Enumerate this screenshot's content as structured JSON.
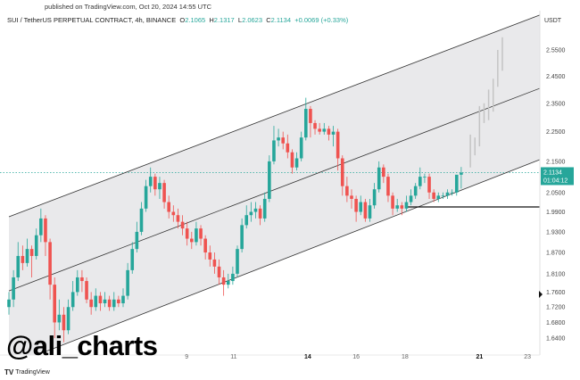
{
  "header": {
    "published": "published on TradingView.com, Oct 20, 2024 14:55 UTC",
    "symbol": "SUI / TetherUS PERPETUAL CONTRACT, 4h, BINANCE",
    "o_label": "O",
    "o": "2.1065",
    "h_label": "H",
    "h": "2.1317",
    "l_label": "L",
    "l": "2.0623",
    "c_label": "C",
    "c": "2.1134",
    "change": "+0.0069 (+0.33%)"
  },
  "watermark": "@ali_charts",
  "brand": {
    "icon": "tradingview-logo-icon",
    "label": "TradingView"
  },
  "colors": {
    "up": "#26a69a",
    "down": "#ef5350",
    "channel_fill": "#e9e9eb",
    "channel_line": "#333333",
    "projection": "#c4c4c4"
  },
  "chart_data": {
    "type": "candlestick",
    "scale": "log",
    "currency": "USDT",
    "y_ticks": [
      "2.5500",
      "2.4500",
      "2.3500",
      "2.2500",
      "2.1500",
      "2.0500",
      "1.9900",
      "1.9300",
      "1.8700",
      "1.8100",
      "1.7600",
      "1.7200",
      "1.6800",
      "1.6400"
    ],
    "x_ticks": [
      {
        "label": "9",
        "index": 38.9,
        "bold": false
      },
      {
        "label": "11",
        "index": 49.2,
        "bold": false
      },
      {
        "label": "14",
        "index": 65.4,
        "bold": true
      },
      {
        "label": "16",
        "index": 76,
        "bold": false
      },
      {
        "label": "18",
        "index": 86.7,
        "bold": false
      },
      {
        "label": "21",
        "index": 103,
        "bold": true
      },
      {
        "label": "23",
        "index": 113.5,
        "bold": false
      }
    ],
    "last_price": {
      "price": "2.1134",
      "countdown": "01:04:12",
      "value": 2.1134
    },
    "candles": [
      [
        1.72,
        1.76,
        1.7,
        1.74
      ],
      [
        1.74,
        1.82,
        1.72,
        1.8
      ],
      [
        1.8,
        1.9,
        1.79,
        1.86
      ],
      [
        1.86,
        1.89,
        1.82,
        1.84
      ],
      [
        1.84,
        1.91,
        1.83,
        1.88
      ],
      [
        1.88,
        1.89,
        1.8,
        1.86
      ],
      [
        1.86,
        1.94,
        1.85,
        1.92
      ],
      [
        1.92,
        2.0,
        1.9,
        1.97
      ],
      [
        1.97,
        1.98,
        1.86,
        1.9
      ],
      [
        1.9,
        1.91,
        1.74,
        1.78
      ],
      [
        1.78,
        1.8,
        1.64,
        1.68
      ],
      [
        1.68,
        1.74,
        1.66,
        1.7
      ],
      [
        1.7,
        1.72,
        1.63,
        1.66
      ],
      [
        1.66,
        1.74,
        1.65,
        1.72
      ],
      [
        1.72,
        1.79,
        1.71,
        1.76
      ],
      [
        1.76,
        1.82,
        1.75,
        1.8
      ],
      [
        1.8,
        1.82,
        1.76,
        1.79
      ],
      [
        1.79,
        1.8,
        1.73,
        1.74
      ],
      [
        1.74,
        1.76,
        1.7,
        1.72
      ],
      [
        1.72,
        1.77,
        1.71,
        1.75
      ],
      [
        1.75,
        1.76,
        1.71,
        1.73
      ],
      [
        1.73,
        1.76,
        1.72,
        1.74
      ],
      [
        1.74,
        1.75,
        1.71,
        1.72
      ],
      [
        1.72,
        1.76,
        1.71,
        1.74
      ],
      [
        1.74,
        1.75,
        1.72,
        1.73
      ],
      [
        1.73,
        1.77,
        1.72,
        1.75
      ],
      [
        1.75,
        1.84,
        1.74,
        1.82
      ],
      [
        1.82,
        1.9,
        1.81,
        1.88
      ],
      [
        1.88,
        1.96,
        1.87,
        1.93
      ],
      [
        1.93,
        2.02,
        1.92,
        2.0
      ],
      [
        2.0,
        2.09,
        1.99,
        2.07
      ],
      [
        2.07,
        2.13,
        2.05,
        2.1
      ],
      [
        2.1,
        2.11,
        2.04,
        2.06
      ],
      [
        2.06,
        2.1,
        2.03,
        2.08
      ],
      [
        2.08,
        2.09,
        2.0,
        2.02
      ],
      [
        2.02,
        2.04,
        1.97,
        1.99
      ],
      [
        1.99,
        2.01,
        1.96,
        1.98
      ],
      [
        1.98,
        2.0,
        1.94,
        1.96
      ],
      [
        1.96,
        1.98,
        1.92,
        1.94
      ],
      [
        1.94,
        1.96,
        1.89,
        1.91
      ],
      [
        1.91,
        1.93,
        1.88,
        1.9
      ],
      [
        1.9,
        1.96,
        1.89,
        1.94
      ],
      [
        1.94,
        1.95,
        1.89,
        1.91
      ],
      [
        1.91,
        1.92,
        1.85,
        1.87
      ],
      [
        1.87,
        1.89,
        1.83,
        1.85
      ],
      [
        1.85,
        1.87,
        1.81,
        1.83
      ],
      [
        1.83,
        1.85,
        1.78,
        1.8
      ],
      [
        1.8,
        1.82,
        1.75,
        1.78
      ],
      [
        1.78,
        1.81,
        1.77,
        1.79
      ],
      [
        1.79,
        1.83,
        1.78,
        1.81
      ],
      [
        1.81,
        1.89,
        1.8,
        1.88
      ],
      [
        1.88,
        1.97,
        1.87,
        1.95
      ],
      [
        1.95,
        2.01,
        1.94,
        1.98
      ],
      [
        1.98,
        2.02,
        1.96,
        1.99
      ],
      [
        1.99,
        2.02,
        1.97,
        2.0
      ],
      [
        2.0,
        2.01,
        1.95,
        1.97
      ],
      [
        1.97,
        2.05,
        1.96,
        2.03
      ],
      [
        2.03,
        2.17,
        2.02,
        2.15
      ],
      [
        2.15,
        2.27,
        2.14,
        2.22
      ],
      [
        2.22,
        2.26,
        2.2,
        2.23
      ],
      [
        2.23,
        2.25,
        2.19,
        2.21
      ],
      [
        2.21,
        2.24,
        2.16,
        2.18
      ],
      [
        2.18,
        2.19,
        2.11,
        2.13
      ],
      [
        2.13,
        2.18,
        2.12,
        2.16
      ],
      [
        2.16,
        2.25,
        2.15,
        2.23
      ],
      [
        2.23,
        2.37,
        2.22,
        2.33
      ],
      [
        2.33,
        2.34,
        2.23,
        2.28
      ],
      [
        2.28,
        2.29,
        2.24,
        2.26
      ],
      [
        2.26,
        2.28,
        2.24,
        2.25
      ],
      [
        2.25,
        2.28,
        2.24,
        2.26
      ],
      [
        2.26,
        2.27,
        2.22,
        2.24
      ],
      [
        2.24,
        2.27,
        2.2,
        2.25
      ],
      [
        2.25,
        2.26,
        2.12,
        2.16
      ],
      [
        2.16,
        2.17,
        2.04,
        2.07
      ],
      [
        2.07,
        2.1,
        2.02,
        2.04
      ],
      [
        2.04,
        2.06,
        2.0,
        2.03
      ],
      [
        2.03,
        2.04,
        1.96,
        1.99
      ],
      [
        1.99,
        2.04,
        1.98,
        2.02
      ],
      [
        2.02,
        2.03,
        1.96,
        1.97
      ],
      [
        1.97,
        2.03,
        1.96,
        2.01
      ],
      [
        2.01,
        2.08,
        2.0,
        2.06
      ],
      [
        2.06,
        2.15,
        2.05,
        2.13
      ],
      [
        2.13,
        2.14,
        2.08,
        2.1
      ],
      [
        2.1,
        2.11,
        2.02,
        2.04
      ],
      [
        2.04,
        2.05,
        1.98,
        2.0
      ],
      [
        2.0,
        2.03,
        1.99,
        2.01
      ],
      [
        2.01,
        2.02,
        1.98,
        2.0
      ],
      [
        2.0,
        2.04,
        1.99,
        2.02
      ],
      [
        2.02,
        2.06,
        2.01,
        2.04
      ],
      [
        2.04,
        2.08,
        2.03,
        2.07
      ],
      [
        2.07,
        2.13,
        2.06,
        2.1
      ],
      [
        2.1,
        2.11,
        2.08,
        2.1
      ],
      [
        2.1,
        2.11,
        2.03,
        2.05
      ],
      [
        2.05,
        2.06,
        2.02,
        2.03
      ],
      [
        2.03,
        2.05,
        2.02,
        2.04
      ],
      [
        2.04,
        2.05,
        2.03,
        2.04
      ],
      [
        2.04,
        2.06,
        2.03,
        2.05
      ],
      [
        2.05,
        2.06,
        2.04,
        2.05
      ],
      [
        2.05,
        2.1,
        2.04,
        2.1065
      ],
      [
        2.1065,
        2.1317,
        2.0623,
        2.1134
      ]
    ],
    "projection": [
      {
        "index": 101,
        "low": 2.13,
        "high": 2.24
      },
      {
        "index": 102,
        "low": 2.17,
        "high": 2.23
      },
      {
        "index": 103,
        "low": 2.2,
        "high": 2.34
      },
      {
        "index": 104,
        "low": 2.28,
        "high": 2.35
      },
      {
        "index": 105,
        "low": 2.29,
        "high": 2.4
      },
      {
        "index": 106,
        "low": 2.32,
        "high": 2.44
      },
      {
        "index": 107,
        "low": 2.41,
        "high": 2.55
      },
      {
        "index": 108,
        "low": 2.47,
        "high": 2.6
      }
    ],
    "channel": {
      "upper": [
        [
          0,
          1.975
        ],
        [
          116.6,
          2.693
        ]
      ],
      "middle": [
        [
          0,
          1.763
        ],
        [
          116.6,
          2.407
        ]
      ],
      "lower": [
        [
          0,
          1.572
        ],
        [
          116.6,
          2.158
        ]
      ]
    },
    "support_line": {
      "price": 2.005,
      "from_index": 86.7,
      "to_index": 116.6
    }
  }
}
